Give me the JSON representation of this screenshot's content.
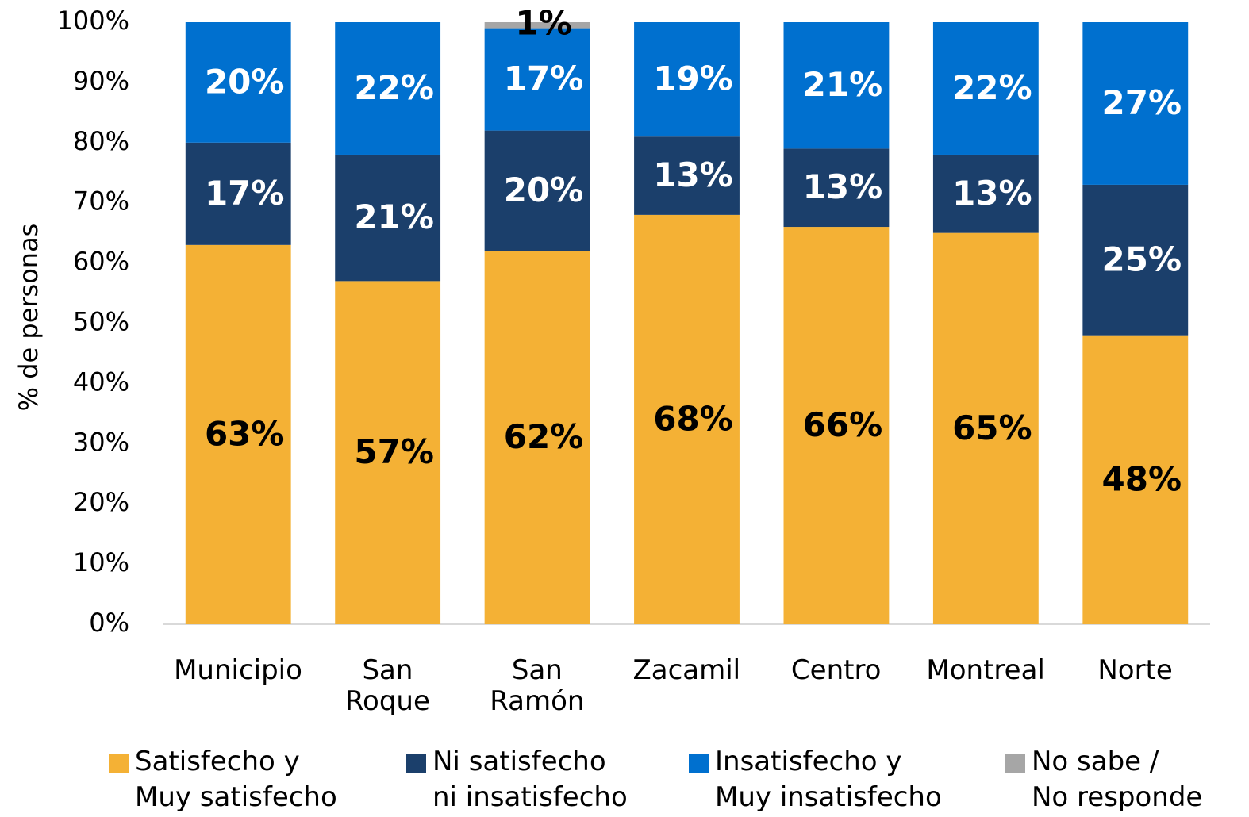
{
  "chart_data": {
    "type": "stacked_bar",
    "y_label": "% de personas",
    "categories": [
      "Municipio",
      "San\nRoque",
      "San\nRamón",
      "Zacamil",
      "Centro",
      "Montreal",
      "Norte"
    ],
    "series": [
      {
        "name": "Satisfecho y\nMuy satisfecho",
        "color": "#F4B135",
        "label_color": "#000000",
        "values": [
          63,
          57,
          62,
          68,
          66,
          65,
          48
        ],
        "value_labels": [
          "63%",
          "57%",
          "62%",
          "68%",
          "66%",
          "65%",
          "48%"
        ]
      },
      {
        "name": "Ni satisfecho\nni insatisfecho",
        "color": "#1B3F6B",
        "label_color": "#ffffff",
        "values": [
          17,
          21,
          20,
          13,
          13,
          13,
          25
        ],
        "value_labels": [
          "17%",
          "21%",
          "20%",
          "13%",
          "13%",
          "13%",
          "25%"
        ]
      },
      {
        "name": "Insatisfecho y\nMuy insatisfecho",
        "color": "#0070CF",
        "label_color": "#ffffff",
        "values": [
          20,
          22,
          17,
          19,
          21,
          22,
          27
        ],
        "value_labels": [
          "20%",
          "22%",
          "17%",
          "19%",
          "21%",
          "22%",
          "27%"
        ]
      },
      {
        "name": "No sabe /\nNo responde",
        "color": "#A6A6A6",
        "label_color": "#000000",
        "values": [
          null,
          null,
          1,
          null,
          null,
          null,
          null
        ],
        "value_labels": [
          null,
          null,
          "1%",
          null,
          null,
          null,
          null
        ]
      }
    ],
    "ylim": [
      0,
      100
    ],
    "yticks": [
      {
        "value": 0,
        "label": "0%"
      },
      {
        "value": 10,
        "label": "10%"
      },
      {
        "value": 20,
        "label": "20%"
      },
      {
        "value": 30,
        "label": "30%"
      },
      {
        "value": 40,
        "label": "40%"
      },
      {
        "value": 50,
        "label": "50%"
      },
      {
        "value": 60,
        "label": "60%"
      },
      {
        "value": 70,
        "label": "70%"
      },
      {
        "value": 80,
        "label": "80%"
      },
      {
        "value": 90,
        "label": "90%"
      },
      {
        "value": 100,
        "label": "100%"
      }
    ],
    "legend": "bottom"
  }
}
